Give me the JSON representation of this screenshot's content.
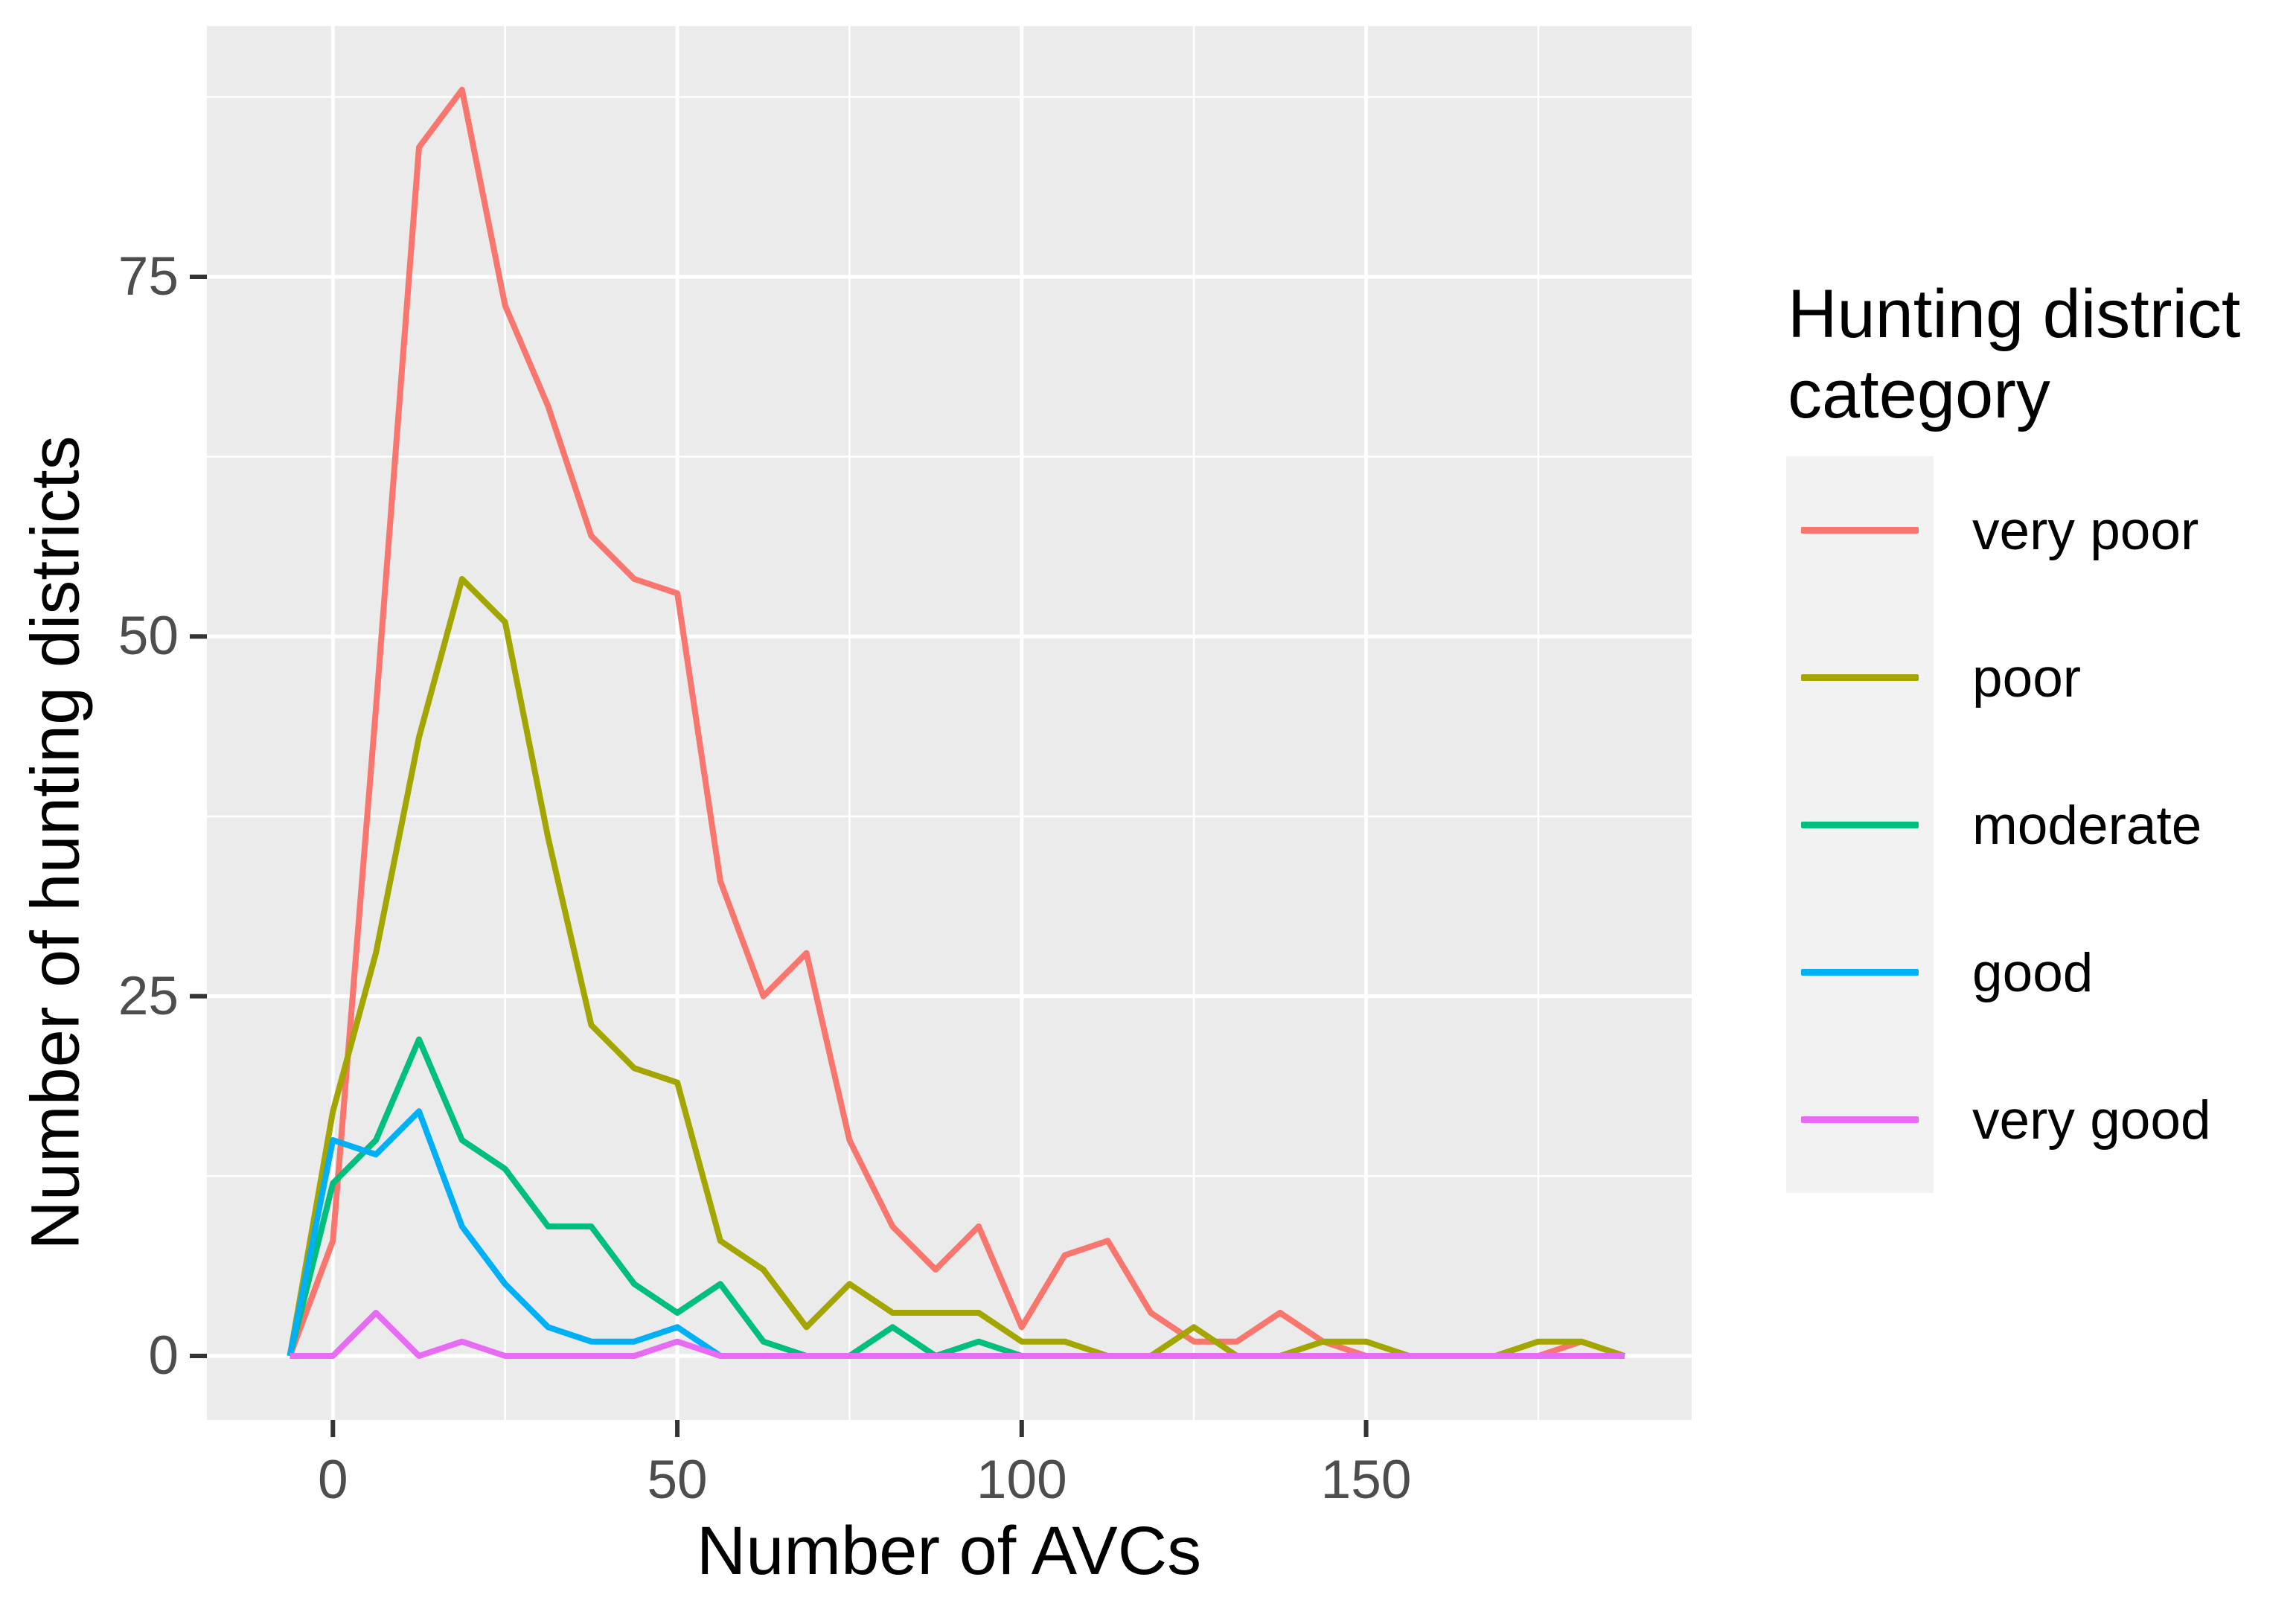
{
  "chart_data": {
    "type": "line",
    "variant": "frequency-polygon",
    "title": "",
    "xlabel": "Number of AVCs",
    "ylabel": "Number of hunting districts",
    "xlim": [
      -16,
      197
    ],
    "ylim": [
      -4.5,
      92.5
    ],
    "grid": "on",
    "legend_position": "right",
    "legend_title": "Hunting district category",
    "legend_title_lines": [
      "Hunting district",
      "category"
    ],
    "panel_bg": "#ebebeb",
    "grid_color": "#ffffff",
    "tick_color": "#333333",
    "tick_label_color": "#4d4d4d",
    "x": [
      -6.25,
      0,
      6.25,
      12.5,
      18.75,
      25,
      31.25,
      37.5,
      43.75,
      50,
      56.25,
      62.5,
      68.75,
      75,
      81.25,
      87.5,
      93.75,
      100,
      106.25,
      112.5,
      118.75,
      125,
      131.25,
      137.5,
      143.75,
      150,
      156.25,
      162.5,
      168.75,
      175,
      181.25,
      187.5
    ],
    "series": [
      {
        "name": "very poor",
        "color": "#F8766D",
        "values": [
          0,
          8,
          45,
          84,
          88,
          73,
          66,
          57,
          54,
          53,
          33,
          25,
          28,
          15,
          9,
          6,
          9,
          2,
          7,
          8,
          3,
          1,
          1,
          3,
          1,
          0,
          0,
          0,
          0,
          0,
          1,
          0
        ]
      },
      {
        "name": "poor",
        "color": "#A3A500",
        "values": [
          0,
          17,
          28,
          43,
          54,
          51,
          36,
          23,
          20,
          19,
          8,
          6,
          2,
          5,
          3,
          3,
          3,
          1,
          1,
          0,
          0,
          2,
          0,
          0,
          1,
          1,
          0,
          0,
          0,
          1,
          1,
          0
        ]
      },
      {
        "name": "moderate",
        "color": "#00BF7D",
        "values": [
          0,
          12,
          15,
          22,
          15,
          13,
          9,
          9,
          5,
          3,
          5,
          1,
          0,
          0,
          2,
          0,
          1,
          0,
          0,
          0,
          0,
          0,
          0,
          0,
          0,
          0,
          0,
          0,
          0,
          0,
          0,
          0
        ]
      },
      {
        "name": "good",
        "color": "#00B0F6",
        "values": [
          0,
          15,
          14,
          17,
          9,
          5,
          2,
          1,
          1,
          2,
          0,
          0,
          0,
          0,
          0,
          0,
          0,
          0,
          0,
          0,
          0,
          0,
          0,
          0,
          0,
          0,
          0,
          0,
          0,
          0,
          0,
          0
        ]
      },
      {
        "name": "very good",
        "color": "#E76BF3",
        "values": [
          0,
          0,
          3,
          0,
          1,
          0,
          0,
          0,
          0,
          1,
          0,
          0,
          0,
          0,
          0,
          0,
          0,
          0,
          0,
          0,
          0,
          0,
          0,
          0,
          0,
          0,
          0,
          0,
          0,
          0,
          0,
          0
        ]
      }
    ],
    "x_major_ticks": [
      {
        "value": 0,
        "label": "0"
      },
      {
        "value": 50,
        "label": "50"
      },
      {
        "value": 100,
        "label": "100"
      },
      {
        "value": 150,
        "label": "150"
      }
    ],
    "y_major_ticks": [
      {
        "value": 0,
        "label": "0"
      },
      {
        "value": 25,
        "label": "25"
      },
      {
        "value": 50,
        "label": "50"
      },
      {
        "value": 75,
        "label": "75"
      }
    ],
    "x_minor_ticks": [
      25,
      75,
      125,
      175
    ],
    "y_minor_ticks": [
      12.5,
      37.5,
      62.5,
      87.5
    ]
  },
  "axes": {
    "x_title": "Number of AVCs",
    "y_title": "Number of hunting districts"
  },
  "legend": {
    "title_line1": "Hunting district",
    "title_line2": "category",
    "items": [
      {
        "label": "very poor",
        "color": "#F8766D"
      },
      {
        "label": "poor",
        "color": "#A3A500"
      },
      {
        "label": "moderate",
        "color": "#00BF7D"
      },
      {
        "label": "good",
        "color": "#00B0F6"
      },
      {
        "label": "very good",
        "color": "#E76BF3"
      }
    ]
  }
}
